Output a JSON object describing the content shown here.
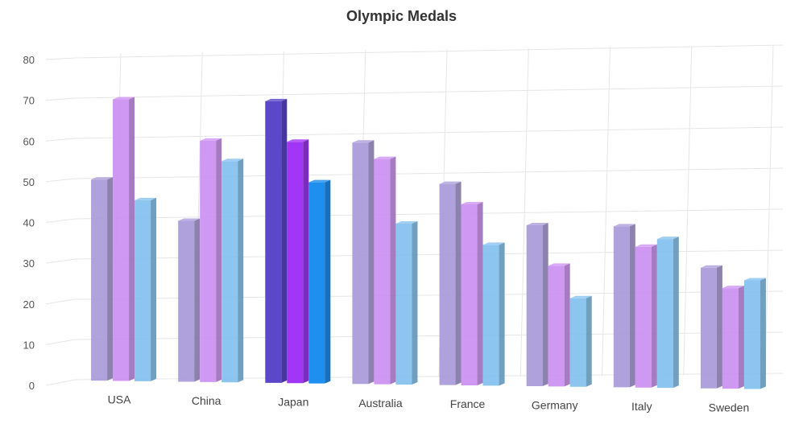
{
  "chart_data": {
    "type": "bar",
    "title": "Olympic Medals",
    "categories": [
      "USA",
      "China",
      "Japan",
      "Australia",
      "France",
      "Germany",
      "Italy",
      "Sweden"
    ],
    "series": [
      {
        "values": [
          50,
          40,
          70,
          60,
          50,
          40,
          40,
          30
        ]
      },
      {
        "values": [
          70,
          60,
          60,
          56,
          45,
          30,
          35,
          25
        ]
      },
      {
        "values": [
          45,
          55,
          50,
          40,
          35,
          22,
          37,
          27
        ]
      }
    ],
    "ylim": [
      0,
      80
    ],
    "yticks": [
      0,
      10,
      20,
      30,
      40,
      50,
      60,
      70,
      80
    ],
    "grid": true,
    "highlighted_category": "Japan",
    "colors": {
      "series_normal": [
        "#a99ad8",
        "#cc90f2",
        "#82c1ef"
      ],
      "series_highlight": [
        "#5b47c9",
        "#a236f6",
        "#1f8fef"
      ],
      "grid": "#e6e6e6",
      "axis_text": "#555555",
      "title": "#333333"
    }
  }
}
